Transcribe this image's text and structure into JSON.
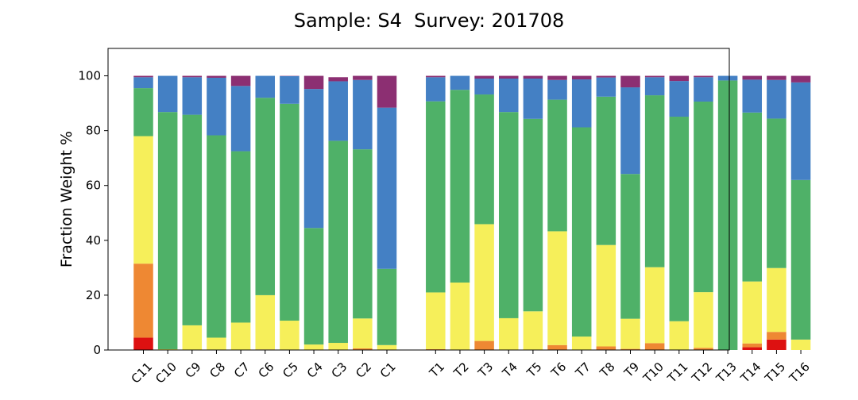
{
  "chart_data": {
    "type": "bar",
    "stacked": true,
    "title": "Sample: S4  Survey: 201708",
    "ylabel": "Fraction Weight %",
    "xlabel": "",
    "ylim": [
      0,
      110
    ],
    "yticks": [
      0,
      20,
      40,
      60,
      80,
      100
    ],
    "grid": false,
    "legend": "none",
    "colors": [
      "#dd1111",
      "#ee8833",
      "#f6ef5a",
      "#4fb168",
      "#4480c4",
      "#8c2f72"
    ],
    "categories": [
      "C11",
      "C10",
      "C9",
      "C8",
      "C7",
      "C6",
      "C5",
      "C4",
      "C3",
      "C2",
      "C1",
      "",
      "T1",
      "T2",
      "T3",
      "T4",
      "T5",
      "T6",
      "T7",
      "T8",
      "T9",
      "T10",
      "T11",
      "T12",
      "T13",
      "T14",
      "T15",
      "T16"
    ],
    "series": [
      {
        "values": [
          4.5,
          0,
          0,
          0,
          0,
          0,
          0,
          0,
          0,
          0,
          0,
          0,
          0,
          0,
          0,
          0,
          0,
          0,
          0,
          0,
          0,
          0,
          0,
          0,
          0,
          1,
          3.8,
          0
        ]
      },
      {
        "values": [
          27,
          0,
          0,
          0,
          0,
          0.2,
          0,
          0,
          0,
          0.6,
          0,
          0,
          0.3,
          0,
          3.3,
          0,
          0,
          1.8,
          0,
          1.3,
          0.4,
          2.5,
          0,
          0.8,
          0,
          1.4,
          2.8,
          0
        ]
      },
      {
        "values": [
          46.5,
          0.3,
          9,
          4.5,
          10,
          19.8,
          10.7,
          2,
          2.6,
          10.9,
          1.8,
          0,
          20.7,
          24.6,
          42.6,
          11.6,
          14.1,
          41.5,
          4.9,
          37,
          11,
          27.7,
          10.5,
          20.3,
          0,
          22.6,
          23.3,
          3.8
        ]
      },
      {
        "values": [
          17.5,
          86.5,
          76.8,
          73.8,
          62.5,
          72,
          79.1,
          42.5,
          73.7,
          61.7,
          27.8,
          0,
          69.7,
          70.3,
          47.3,
          75.2,
          70.2,
          48,
          76.3,
          54.1,
          52.8,
          62.7,
          74.6,
          69.5,
          98.3,
          61.6,
          54.5,
          58.2
        ]
      },
      {
        "values": [
          4,
          13.2,
          13.7,
          21,
          23.8,
          8,
          10.1,
          50.7,
          21.7,
          25.3,
          58.8,
          0,
          8.8,
          5.1,
          5.8,
          12.2,
          14.7,
          7.2,
          17.5,
          7,
          31.6,
          6.6,
          13,
          8.9,
          1.7,
          12,
          14.1,
          35.6
        ]
      },
      {
        "values": [
          0.5,
          0,
          0.5,
          0.7,
          3.7,
          0,
          0.1,
          4.8,
          1.5,
          1.5,
          11.6,
          0,
          0.5,
          0,
          1,
          1,
          1,
          1.5,
          1.3,
          0.6,
          4.2,
          0.5,
          1.9,
          0.5,
          0,
          1.4,
          1.5,
          2.4
        ]
      }
    ]
  }
}
